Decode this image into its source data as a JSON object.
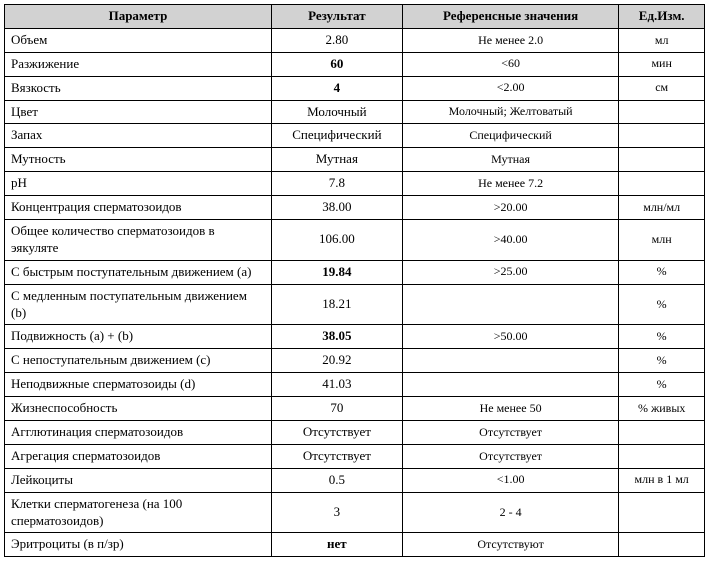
{
  "headers": {
    "param": "Параметр",
    "result": "Результат",
    "ref": "Референсные значения",
    "unit": "Ед.Изм."
  },
  "rows": [
    {
      "param": "Объем",
      "result": "2.80",
      "bold": false,
      "ref": "Не менее 2.0",
      "unit": "мл"
    },
    {
      "param": "Разжижение",
      "result": "60",
      "bold": true,
      "ref": "<60",
      "unit": "мин"
    },
    {
      "param": "Вязкость",
      "result": "4",
      "bold": true,
      "ref": "<2.00",
      "unit": "см"
    },
    {
      "param": "Цвет",
      "result": "Молочный",
      "bold": false,
      "ref": "Молочный; Желтоватый",
      "unit": ""
    },
    {
      "param": "Запах",
      "result": "Специфический",
      "bold": false,
      "ref": "Специфический",
      "unit": ""
    },
    {
      "param": "Мутность",
      "result": "Мутная",
      "bold": false,
      "ref": "Мутная",
      "unit": ""
    },
    {
      "param": "pH",
      "result": "7.8",
      "bold": false,
      "ref": "Не менее 7.2",
      "unit": ""
    },
    {
      "param": "Концентрация сперматозоидов",
      "result": "38.00",
      "bold": false,
      "ref": ">20.00",
      "unit": "млн/мл"
    },
    {
      "param": "Общее количество сперматозоидов в эякуляте",
      "result": "106.00",
      "bold": false,
      "ref": ">40.00",
      "unit": "млн"
    },
    {
      "param": "С быстрым поступательным движением (a)",
      "result": "19.84",
      "bold": true,
      "ref": ">25.00",
      "unit": "%"
    },
    {
      "param": "С медленным поступательным движением (b)",
      "result": "18.21",
      "bold": false,
      "ref": "",
      "unit": "%"
    },
    {
      "param": "Подвижность (a) + (b)",
      "result": "38.05",
      "bold": true,
      "ref": ">50.00",
      "unit": "%"
    },
    {
      "param": "С непоступательным движением (c)",
      "result": "20.92",
      "bold": false,
      "ref": "",
      "unit": "%"
    },
    {
      "param": "Неподвижные сперматозоиды (d)",
      "result": "41.03",
      "bold": false,
      "ref": "",
      "unit": "%"
    },
    {
      "param": "Жизнеспособность",
      "result": "70",
      "bold": false,
      "ref": "Не менее 50",
      "unit": "% живых"
    },
    {
      "param": "Агглютинация сперматозоидов",
      "result": "Отсутствует",
      "bold": false,
      "ref": "Отсутствует",
      "unit": ""
    },
    {
      "param": "Агрегация сперматозоидов",
      "result": "Отсутствует",
      "bold": false,
      "ref": "Отсутствует",
      "unit": ""
    },
    {
      "param": "Лейкоциты",
      "result": "0.5",
      "bold": false,
      "ref": "<1.00",
      "unit": "млн в 1 мл"
    },
    {
      "param": "Клетки сперматогенеза (на 100 сперматозоидов)",
      "result": "3",
      "bold": false,
      "ref": "2 - 4",
      "unit": ""
    },
    {
      "param": "Эритроциты (в п/зр)",
      "result": "нет",
      "bold": true,
      "ref": "Отсутствуют",
      "unit": ""
    }
  ]
}
